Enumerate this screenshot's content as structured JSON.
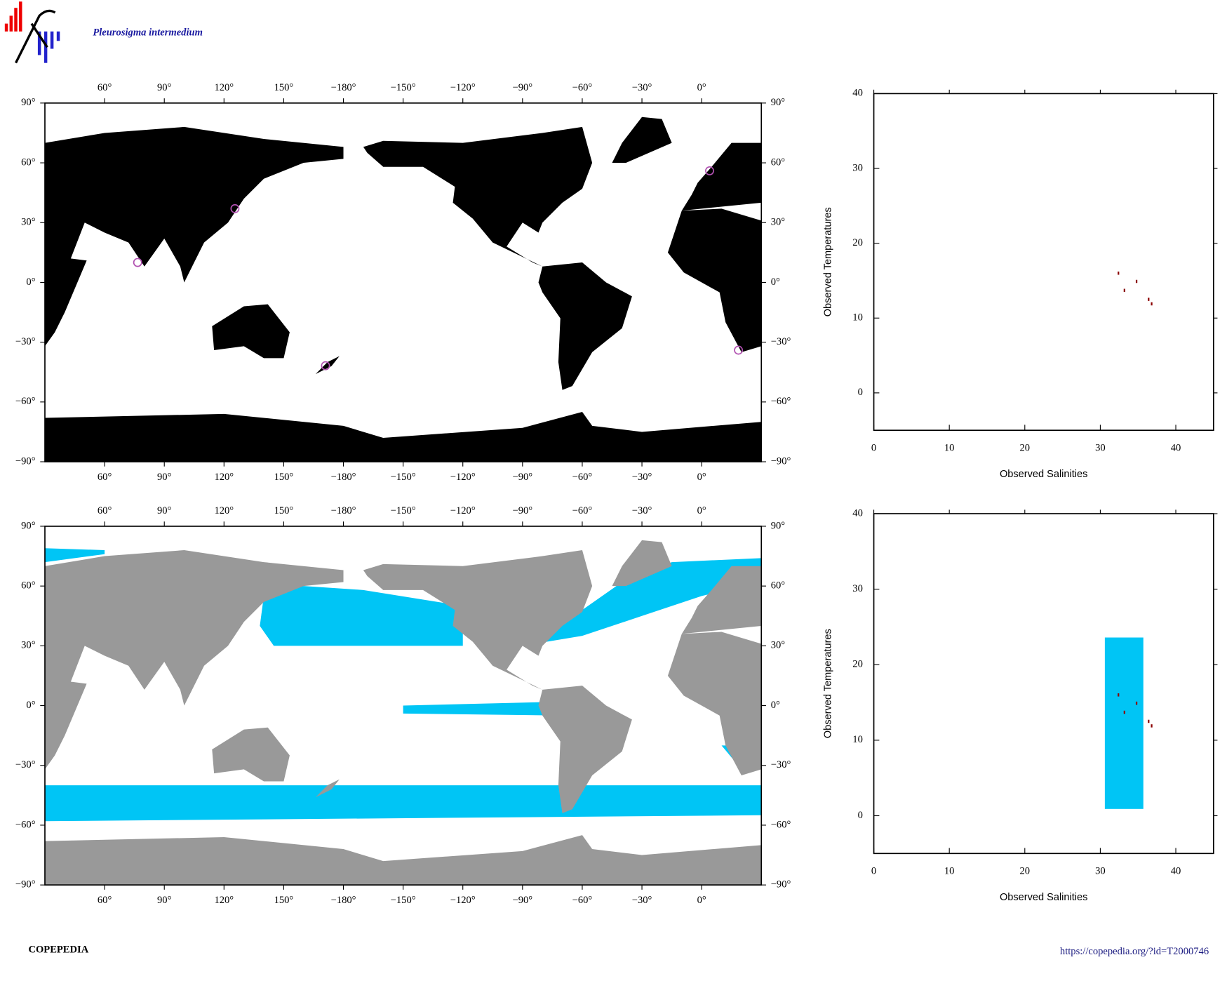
{
  "title": "Pleurosigma intermedium",
  "brand": "COPEPEDIA",
  "url": "https://copepedia.org/?id=T2000746",
  "chart_data": [
    {
      "type": "map",
      "land_color": "#000000",
      "marker_color": "#b050b0",
      "xlim": [
        30,
        390
      ],
      "ylim": [
        -90,
        90
      ],
      "xticks": [
        {
          "value": 60,
          "label": "60°"
        },
        {
          "value": 90,
          "label": "90°"
        },
        {
          "value": 120,
          "label": "120°"
        },
        {
          "value": 150,
          "label": "150°"
        },
        {
          "value": 180,
          "label": "−180°"
        },
        {
          "value": 210,
          "label": "−150°"
        },
        {
          "value": 240,
          "label": "−120°"
        },
        {
          "value": 270,
          "label": "−90°"
        },
        {
          "value": 300,
          "label": "−60°"
        },
        {
          "value": 330,
          "label": "−30°"
        },
        {
          "value": 360,
          "label": "0°"
        }
      ],
      "yticks": [
        {
          "value": -90,
          "label": "−90°"
        },
        {
          "value": -60,
          "label": "−60°"
        },
        {
          "value": -30,
          "label": "−30°"
        },
        {
          "value": 0,
          "label": "0°"
        },
        {
          "value": 30,
          "label": "30°"
        },
        {
          "value": 60,
          "label": "60°"
        },
        {
          "value": 90,
          "label": "90°"
        }
      ],
      "occurrences": {
        "lon": [
          125.5,
          76.6,
          171,
          378.5,
          364
        ],
        "lat": [
          37,
          10,
          -41.8,
          -34,
          56
        ]
      }
    },
    {
      "type": "map",
      "land_color": "#999999",
      "range_color": "#00c5f5",
      "xlim": [
        30,
        390
      ],
      "ylim": [
        -90,
        90
      ],
      "xticks": [
        {
          "value": 60,
          "label": "60°"
        },
        {
          "value": 90,
          "label": "90°"
        },
        {
          "value": 120,
          "label": "120°"
        },
        {
          "value": 150,
          "label": "150°"
        },
        {
          "value": 180,
          "label": "−180°"
        },
        {
          "value": 210,
          "label": "−150°"
        },
        {
          "value": 240,
          "label": "−120°"
        },
        {
          "value": 270,
          "label": "−90°"
        },
        {
          "value": 300,
          "label": "−60°"
        },
        {
          "value": 330,
          "label": "−30°"
        },
        {
          "value": 360,
          "label": "0°"
        }
      ],
      "yticks": [
        {
          "value": -90,
          "label": "−90°"
        },
        {
          "value": -60,
          "label": "−60°"
        },
        {
          "value": -30,
          "label": "−30°"
        },
        {
          "value": 0,
          "label": "0°"
        },
        {
          "value": 30,
          "label": "30°"
        },
        {
          "value": 60,
          "label": "60°"
        },
        {
          "value": 90,
          "label": "90°"
        }
      ]
    },
    {
      "type": "scatter",
      "x_label": "Observed Salinities",
      "y_label": "Observed Temperatures",
      "color": "#8b0000",
      "xlim": [
        0,
        45
      ],
      "ylim": [
        -5,
        40
      ],
      "xticks": [
        0,
        10,
        20,
        30,
        40
      ],
      "yticks": [
        0,
        10,
        20,
        30,
        40
      ],
      "x": [
        32.4,
        33.2,
        34.8,
        36.4,
        36.8
      ],
      "y": [
        16,
        13.7,
        14.9,
        12.5,
        11.9
      ]
    },
    {
      "type": "scatter",
      "x_label": "Observed Salinities",
      "y_label": "Observed Temperatures",
      "color": "#8b0000",
      "range_color": "#00c5f5",
      "xlim": [
        0,
        45
      ],
      "ylim": [
        -5,
        40
      ],
      "xticks": [
        0,
        10,
        20,
        30,
        40
      ],
      "yticks": [
        0,
        10,
        20,
        30,
        40
      ],
      "x": [
        32.4,
        33.2,
        34.8,
        36.4,
        36.8
      ],
      "y": [
        16,
        13.7,
        14.9,
        12.5,
        11.9
      ],
      "range": {
        "salinity": [
          30.6,
          35.7
        ],
        "temperature": [
          0.9,
          23.6
        ]
      }
    }
  ]
}
